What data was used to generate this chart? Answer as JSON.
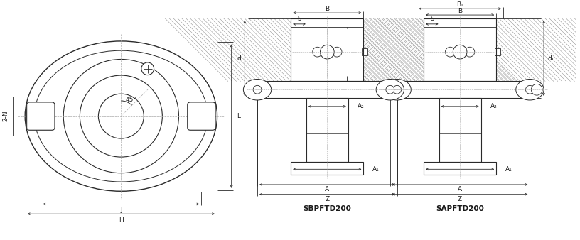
{
  "bg_color": "#ffffff",
  "line_color": "#2a2a2a",
  "dim_color": "#2a2a2a",
  "text_color": "#1a1a1a",
  "label1": "SBPFTD200",
  "label2": "SAPFTD200",
  "label_45": "45°",
  "label_2N": "2-N",
  "label_L": "L",
  "label_J": "J",
  "label_H": "H",
  "label_B": "B",
  "label_B1": "B₁",
  "label_S": "S",
  "label_A2": "A₂",
  "label_A1": "A₁",
  "label_A": "A",
  "label_Z": "Z",
  "label_d": "d",
  "label_d1": "d₁"
}
